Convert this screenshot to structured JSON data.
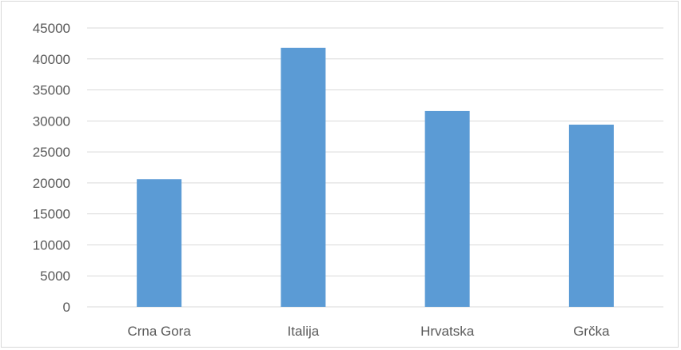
{
  "chart_data": {
    "type": "bar",
    "title": "",
    "xlabel": "",
    "ylabel": "",
    "categories": [
      "Crna Gora",
      "Italija",
      "Hrvatska",
      "Grčka"
    ],
    "values": [
      20600,
      41800,
      31600,
      29400
    ],
    "ylim": [
      0,
      45000
    ],
    "yticks": [
      "0",
      "5000",
      "10000",
      "15000",
      "20000",
      "25000",
      "30000",
      "35000",
      "40000",
      "45000"
    ],
    "grid": true,
    "legend": "none",
    "colors": {
      "bar": "#5b9bd5",
      "grid": "#d9d9d9",
      "text": "#595959"
    }
  }
}
